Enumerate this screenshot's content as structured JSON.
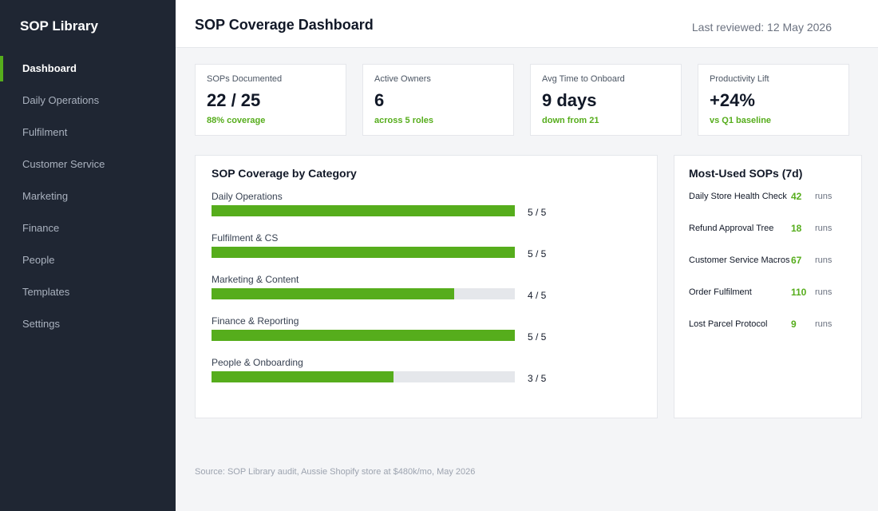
{
  "sidebar": {
    "brand": "SOP Library",
    "items": [
      {
        "label": "Dashboard",
        "active": true
      },
      {
        "label": "Daily Operations"
      },
      {
        "label": "Fulfilment"
      },
      {
        "label": "Customer Service"
      },
      {
        "label": "Marketing"
      },
      {
        "label": "Finance"
      },
      {
        "label": "People"
      },
      {
        "label": "Templates"
      },
      {
        "label": "Settings"
      }
    ]
  },
  "header": {
    "title": "SOP Coverage Dashboard",
    "last_reviewed": "Last reviewed: 12 May 2026"
  },
  "kpis": [
    {
      "label": "SOPs Documented",
      "value": "22 / 25",
      "sub": "88% coverage"
    },
    {
      "label": "Active Owners",
      "value": "6",
      "sub": "across 5 roles"
    },
    {
      "label": "Avg Time to Onboard",
      "value": "9 days",
      "sub": "down from 21"
    },
    {
      "label": "Productivity Lift",
      "value": "+24%",
      "sub": "vs Q1 baseline"
    }
  ],
  "coverage": {
    "title": "SOP Coverage by Category",
    "categories": [
      {
        "label": "Daily Operations",
        "score": "5 / 5",
        "fraction": 1.0
      },
      {
        "label": "Fulfilment & CS",
        "score": "5 / 5",
        "fraction": 1.0
      },
      {
        "label": "Marketing & Content",
        "score": "4 / 5",
        "fraction": 0.8
      },
      {
        "label": "Finance & Reporting",
        "score": "5 / 5",
        "fraction": 1.0
      },
      {
        "label": "People & Onboarding",
        "score": "3 / 5",
        "fraction": 0.6
      }
    ]
  },
  "most_used": {
    "title": "Most-Used SOPs (7d)",
    "unit": "runs",
    "items": [
      {
        "name": "Daily Store Health Check",
        "runs": "42"
      },
      {
        "name": "Refund Approval Tree",
        "runs": "18"
      },
      {
        "name": "Customer Service Macros",
        "runs": "67"
      },
      {
        "name": "Order Fulfilment",
        "runs": "110"
      },
      {
        "name": "Lost Parcel Protocol",
        "runs": "9"
      }
    ]
  },
  "footer": {
    "source": "Source: SOP Library audit, Aussie Shopify store at $480k/mo, May 2026"
  },
  "colors": {
    "accent": "#56ad1c",
    "sidebar_bg": "#1f2633",
    "track": "#e5e7eb"
  }
}
